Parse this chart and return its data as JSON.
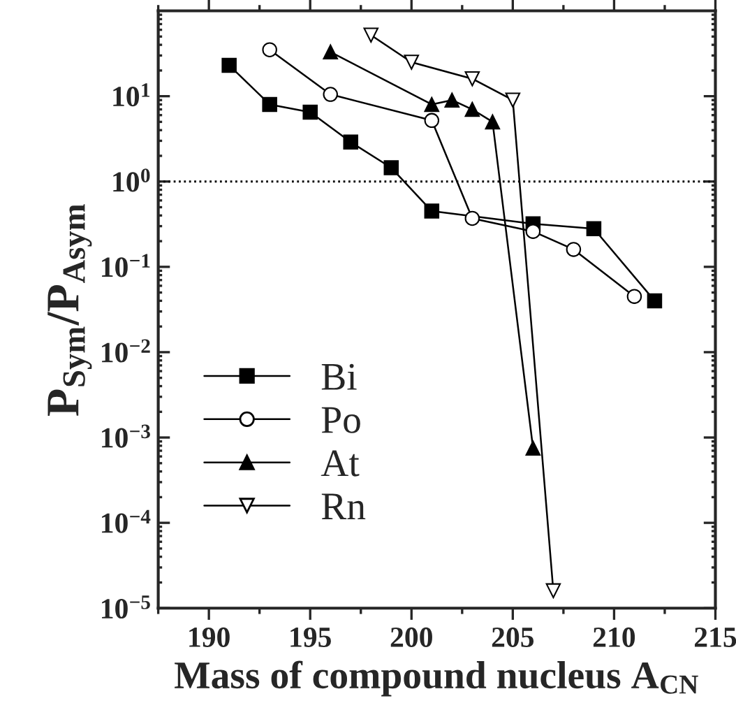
{
  "chart_data": {
    "type": "line",
    "xlabel": "Mass of compound nucleus A$_{CN}$",
    "ylabel": "P$_{Sym}$/P$_{Asym}$",
    "log": "y",
    "legend": "left",
    "grid": false,
    "xlim": [
      187.5,
      215
    ],
    "xticks": [
      190,
      195,
      200,
      205,
      210,
      215
    ],
    "ylim": [
      1e-05,
      100
    ],
    "yticks": [
      {
        "value": 1e-05,
        "label": "10$^{−5}$"
      },
      {
        "value": 0.0001,
        "label": "10$^{−4}$"
      },
      {
        "value": 0.001,
        "label": "10$^{−3}$"
      },
      {
        "value": 0.01,
        "label": "10$^{−2}$"
      },
      {
        "value": 0.1,
        "label": "10$^{−1}$"
      },
      {
        "value": 1,
        "label": "10$^{0}$"
      },
      {
        "value": 10,
        "label": "10$^{1}$"
      }
    ],
    "ref_lines": [
      {
        "axis": "y",
        "value": 1,
        "line_style": "dotted",
        "color": "#000000"
      }
    ],
    "series": [
      {
        "name": "Bi",
        "color": "#000000",
        "marker": "square",
        "x": [
          191,
          193,
          195,
          197,
          199,
          201,
          206,
          209,
          212
        ],
        "values": [
          23,
          8,
          6.5,
          2.9,
          1.45,
          0.45,
          0.32,
          0.28,
          0.04
        ]
      },
      {
        "name": "Po",
        "color": "#000000",
        "marker": "circle",
        "x": [
          193,
          196,
          201,
          203,
          206,
          208,
          211
        ],
        "values": [
          35,
          10.5,
          5.2,
          0.37,
          0.26,
          0.16,
          0.045
        ]
      },
      {
        "name": "At",
        "color": "#000000",
        "marker": "triangle",
        "x": [
          196,
          201,
          202,
          203,
          204,
          206
        ],
        "values": [
          33,
          8,
          9,
          7,
          5,
          0.00075
        ]
      },
      {
        "name": "Rn",
        "color": "#000000",
        "marker": "triangle_down",
        "x": [
          198,
          200,
          203,
          205,
          207
        ],
        "values": [
          52,
          25,
          16,
          9,
          1.6e-05
        ]
      }
    ]
  }
}
